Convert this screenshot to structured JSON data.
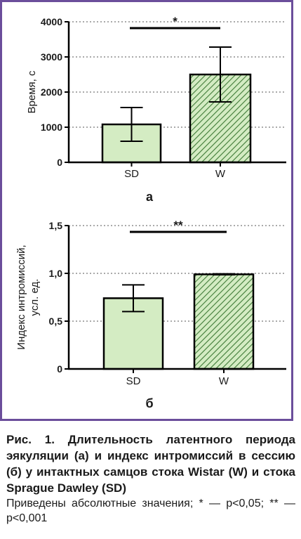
{
  "chart_data": [
    {
      "type": "bar",
      "panel_label": "а",
      "categories": [
        "SD",
        "W"
      ],
      "values": [
        1080,
        2500
      ],
      "errors": [
        480,
        780
      ],
      "ylabel": "Время, с",
      "ylim": [
        0,
        4000
      ],
      "yticks": [
        "0",
        "1000",
        "2000",
        "3000",
        "4000"
      ],
      "ytick_values": [
        0,
        1000,
        2000,
        3000,
        4000
      ],
      "grid": "dotted horizontal",
      "significance": "*",
      "fills": [
        "#d4ecc3",
        "hatched-green"
      ],
      "colors": {
        "bar_fill": "#d4ecc3",
        "hatch": "#3f7a37",
        "edge": "#000000"
      }
    },
    {
      "type": "bar",
      "panel_label": "б",
      "categories": [
        "SD",
        "W"
      ],
      "values": [
        0.74,
        0.99
      ],
      "errors": [
        0.14,
        0.005
      ],
      "ylabel": "Индекс интромиссий, усл. ед.",
      "ylabel_lines": [
        "Индекс интромиссий,",
        "усл. ед."
      ],
      "ylim": [
        0,
        1.5
      ],
      "yticks": [
        "0",
        "0,5",
        "1,0",
        "1,5"
      ],
      "ytick_values": [
        0,
        0.5,
        1.0,
        1.5
      ],
      "grid": "dotted horizontal",
      "significance": "**",
      "fills": [
        "#d4ecc3",
        "hatched-green"
      ],
      "colors": {
        "bar_fill": "#d4ecc3",
        "hatch": "#3f7a37",
        "edge": "#000000"
      }
    }
  ],
  "caption": {
    "title": "Рис. 1. Длительность латентного периода эякуляции (а) и индекс интромиссий в сессию (б) у интактных самцов стока Wistar (W) и стока Sprague Dawley (SD)",
    "note": "Приведены абсолютные значения; * — p<0,05; ** — p<0,001"
  },
  "colors": {
    "frame": "#6b4e9b"
  }
}
